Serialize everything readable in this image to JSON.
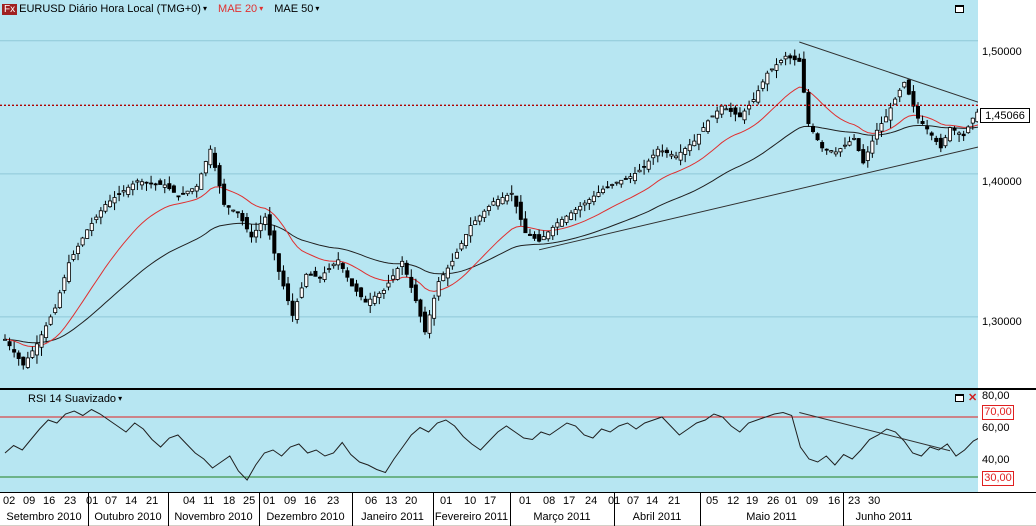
{
  "header": {
    "logo": "Fx",
    "symbol_label": "EURUSD Diário Hora Local (TMG+0)",
    "ma20_label": "MAE 20",
    "ma50_label": "MAE 50",
    "caret": "▾"
  },
  "rsi": {
    "label": "RSI 14 Suavizado"
  },
  "colors": {
    "background": "#b7e6f2",
    "ma20": "#e03030",
    "ma50": "#202020",
    "rsi": "#202020",
    "candle_up": "#ffffff",
    "candle_down": "#000000",
    "level_70": "#e02020",
    "level_30": "#208020",
    "current_price": "#b00000"
  },
  "chart_data": [
    {
      "type": "candlestick",
      "title": "EURUSD Diário Hora Local (TMG+0)",
      "y_ticks": [
        "1,50000",
        "1,40000",
        "1,30000"
      ],
      "y_scale": "log",
      "ylim": [
        1.253,
        1.532
      ],
      "current_price": "1,45066",
      "current_price_value": 1.45066,
      "date_range": [
        "2010-09-02",
        "2011-06-03"
      ],
      "series": [
        {
          "name": "MAE 20",
          "type": "line"
        },
        {
          "name": "MAE 50",
          "type": "line"
        }
      ],
      "close_key": [
        [
          "2010-09-02",
          1.285
        ],
        [
          "2010-09-08",
          1.268
        ],
        [
          "2010-09-13",
          1.282
        ],
        [
          "2010-09-17",
          1.306
        ],
        [
          "2010-09-22",
          1.337
        ],
        [
          "2010-09-28",
          1.36
        ],
        [
          "2010-10-04",
          1.378
        ],
        [
          "2010-10-08",
          1.388
        ],
        [
          "2010-10-13",
          1.395
        ],
        [
          "2010-10-18",
          1.393
        ],
        [
          "2010-10-21",
          1.392
        ],
        [
          "2010-10-26",
          1.384
        ],
        [
          "2010-11-01",
          1.391
        ],
        [
          "2010-11-04",
          1.418
        ],
        [
          "2010-11-09",
          1.378
        ],
        [
          "2010-11-12",
          1.372
        ],
        [
          "2010-11-17",
          1.355
        ],
        [
          "2010-11-22",
          1.369
        ],
        [
          "2010-11-25",
          1.331
        ],
        [
          "2010-11-30",
          1.301
        ],
        [
          "2010-12-03",
          1.329
        ],
        [
          "2010-12-08",
          1.327
        ],
        [
          "2010-12-14",
          1.339
        ],
        [
          "2010-12-17",
          1.321
        ],
        [
          "2010-12-22",
          1.31
        ],
        [
          "2010-12-28",
          1.318
        ],
        [
          "2011-01-03",
          1.338
        ],
        [
          "2011-01-06",
          1.311
        ],
        [
          "2011-01-10",
          1.29
        ],
        [
          "2011-01-13",
          1.324
        ],
        [
          "2011-01-18",
          1.338
        ],
        [
          "2011-01-24",
          1.363
        ],
        [
          "2011-01-31",
          1.38
        ],
        [
          "2011-02-04",
          1.386
        ],
        [
          "2011-02-09",
          1.358
        ],
        [
          "2011-02-14",
          1.352
        ],
        [
          "2011-02-18",
          1.365
        ],
        [
          "2011-02-23",
          1.372
        ],
        [
          "2011-02-28",
          1.379
        ],
        [
          "2011-03-04",
          1.389
        ],
        [
          "2011-03-09",
          1.394
        ],
        [
          "2011-03-14",
          1.398
        ],
        [
          "2011-03-17",
          1.405
        ],
        [
          "2011-03-22",
          1.418
        ],
        [
          "2011-03-28",
          1.413
        ],
        [
          "2011-04-01",
          1.424
        ],
        [
          "2011-04-06",
          1.439
        ],
        [
          "2011-04-11",
          1.45
        ],
        [
          "2011-04-15",
          1.442
        ],
        [
          "2011-04-20",
          1.455
        ],
        [
          "2011-04-25",
          1.475
        ],
        [
          "2011-04-29",
          1.488
        ],
        [
          "2011-05-04",
          1.484
        ],
        [
          "2011-05-06",
          1.437
        ],
        [
          "2011-05-11",
          1.419
        ],
        [
          "2011-05-16",
          1.416
        ],
        [
          "2011-05-20",
          1.426
        ],
        [
          "2011-05-24",
          1.408
        ],
        [
          "2011-05-27",
          1.432
        ],
        [
          "2011-05-31",
          1.442
        ],
        [
          "2011-06-03",
          1.462
        ],
        [
          "2011-06-06",
          1.468
        ],
        [
          "2011-06-09",
          1.441
        ],
        [
          "2011-06-13",
          1.433
        ],
        [
          "2011-06-16",
          1.419
        ],
        [
          "2011-06-20",
          1.434
        ],
        [
          "2011-06-23",
          1.428
        ],
        [
          "2011-06-27",
          1.441
        ],
        [
          "2011-06-29",
          1.45
        ]
      ],
      "trendlines": [
        {
          "from": [
            "2011-05-04",
            1.499
          ],
          "to": [
            "2011-07-08",
            1.444
          ]
        },
        {
          "from": [
            "2011-02-14",
            1.346
          ],
          "to": [
            "2011-07-07",
            1.425
          ]
        }
      ]
    },
    {
      "type": "line",
      "title": "RSI 14 Suavizado",
      "y_ticks": [
        "80,00",
        "60,00",
        "40,00"
      ],
      "levels": [
        "70,00",
        "30,00"
      ],
      "level_values": [
        70,
        30
      ],
      "ylim": [
        20,
        88
      ],
      "values": [
        46,
        51,
        48,
        55,
        62,
        68,
        66,
        72,
        74,
        71,
        75,
        72,
        68,
        64,
        60,
        66,
        62,
        55,
        50,
        56,
        58,
        52,
        46,
        42,
        36,
        40,
        44,
        34,
        28,
        38,
        46,
        48,
        44,
        50,
        52,
        46,
        48,
        44,
        46,
        53,
        45,
        40,
        38,
        35,
        33,
        42,
        50,
        58,
        63,
        60,
        66,
        68,
        64,
        57,
        52,
        48,
        54,
        60,
        64,
        60,
        56,
        55,
        60,
        58,
        62,
        66,
        64,
        58,
        56,
        62,
        60,
        64,
        66,
        62,
        66,
        68,
        70,
        64,
        58,
        62,
        66,
        68,
        72,
        70,
        64,
        60,
        66,
        68,
        70,
        72,
        73,
        71,
        50,
        42,
        40,
        44,
        38,
        45,
        42,
        48,
        55,
        58,
        62,
        60,
        54,
        46,
        44,
        50,
        48,
        52,
        44,
        48,
        54,
        57
      ],
      "trendline": {
        "from_rsi": 73,
        "to_rsi": 47.5
      }
    }
  ],
  "time_axis": {
    "days": [
      "02",
      "09",
      "16",
      "23",
      "01",
      "07",
      "14",
      "21",
      "04",
      "11",
      "18",
      "25",
      "01",
      "09",
      "16",
      "23",
      "06",
      "13",
      "20",
      "01",
      "10",
      "17",
      "01",
      "08",
      "17",
      "24",
      "01",
      "07",
      "14",
      "21",
      "05",
      "12",
      "19",
      "26",
      "01",
      "09",
      "16",
      "23",
      "30"
    ],
    "months": [
      "Setembro 2010",
      "Outubro 2010",
      "Novembro 2010",
      "Dezembro 2010",
      "Janeiro 2011",
      "Fevereiro 2011",
      "Março 2011",
      "Abril 2011",
      "Maio 2011",
      "Junho 2011"
    ]
  }
}
